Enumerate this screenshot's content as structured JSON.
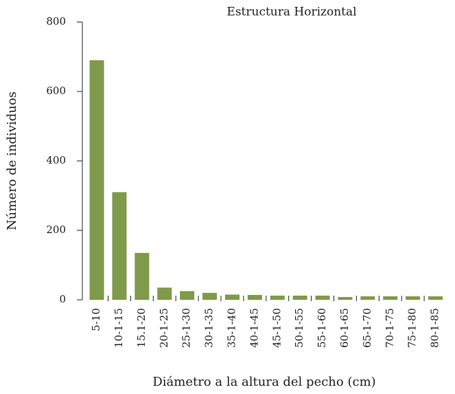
{
  "chart_data": {
    "type": "bar",
    "title": "Estructura Horizontal",
    "xlabel": "Diámetro a la altura del pecho (cm)",
    "ylabel": "Número de individuos",
    "categories": [
      "5-10",
      "10-1-15",
      "15.1-20",
      "20-1-25",
      "25-1-30",
      "30-1-35",
      "35-1-40",
      "40-1-45",
      "45-1-50",
      "50-1-55",
      "55-1-60",
      "60-1-65",
      "65-1-70",
      "70-1-75",
      "75-1-80",
      "80-1-85"
    ],
    "values": [
      690,
      310,
      135,
      35,
      25,
      20,
      15,
      14,
      12,
      12,
      12,
      8,
      10,
      10,
      10,
      10
    ],
    "color": "#7f9a4a",
    "ylim": [
      0,
      800
    ],
    "yticks": [
      0,
      200,
      400,
      600,
      800
    ],
    "grid": false
  }
}
